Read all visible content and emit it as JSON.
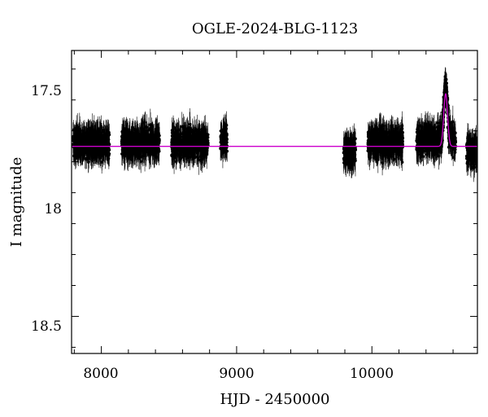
{
  "chart_data": {
    "type": "scatter",
    "title": "OGLE-2024-BLG-1123",
    "xlabel": "HJD - 2450000",
    "ylabel": "I magnitude",
    "xlim": [
      7780,
      10780
    ],
    "ylim": [
      18.62,
      17.64
    ],
    "y_inverted": true,
    "x_ticks": [
      8000,
      9000,
      10000
    ],
    "x_tick_labels": [
      "8000",
      "9000",
      "10000"
    ],
    "y_ticks": [
      17.5,
      18,
      18.5
    ],
    "y_tick_labels": [
      "17.5",
      "18",
      "18.5"
    ],
    "grid": false,
    "legend": "none",
    "colors": {
      "data": "#000000",
      "model": "#cc00cc"
    },
    "series": [
      {
        "kind": "observations",
        "seasons": [
          {
            "x_range": [
              7790,
              8060
            ],
            "mean_mag": 17.94
          },
          {
            "x_range": [
              8150,
              8430
            ],
            "mean_mag": 17.94
          },
          {
            "x_range": [
              8520,
              8790
            ],
            "mean_mag": 17.94
          },
          {
            "x_range": [
              8880,
              8930
            ],
            "mean_mag": 17.93
          },
          {
            "x_range": [
              9790,
              9880
            ],
            "mean_mag": 17.97
          },
          {
            "x_range": [
              9970,
              10230
            ],
            "mean_mag": 17.94
          },
          {
            "x_range": [
              10330,
              10620
            ],
            "mean_mag": 17.93
          },
          {
            "x_range": [
              10700,
              10780
            ],
            "mean_mag": 17.97
          }
        ],
        "typical_error_mag": 0.035
      },
      {
        "kind": "model",
        "baseline_mag": 17.95,
        "peak_x": 10545,
        "peak_mag": 17.78,
        "peak_width_days": 20
      }
    ]
  }
}
